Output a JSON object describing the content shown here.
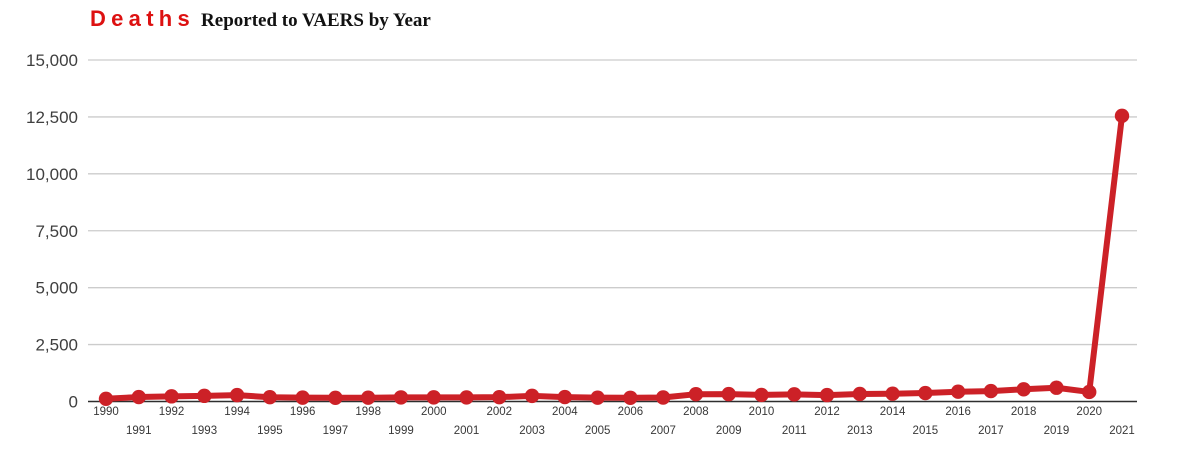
{
  "header": {
    "title_emphasis": "Deaths",
    "title_rest": "Reported to VAERS by Year"
  },
  "chart_data": {
    "type": "line",
    "title": "Deaths Reported to VAERS by Year",
    "title_emphasis": "Deaths",
    "title_rest": "Reported to VAERS by Year",
    "series_name": "Deaths",
    "x": [
      "1990",
      "1991",
      "1992",
      "1993",
      "1994",
      "1995",
      "1996",
      "1997",
      "1998",
      "1999",
      "2000",
      "2001",
      "2002",
      "2003",
      "2004",
      "2005",
      "2006",
      "2007",
      "2008",
      "2009",
      "2010",
      "2011",
      "2012",
      "2013",
      "2014",
      "2015",
      "2016",
      "2017",
      "2018",
      "2019",
      "2020",
      "2021"
    ],
    "values": [
      119,
      195,
      226,
      248,
      280,
      189,
      170,
      162,
      167,
      180,
      181,
      179,
      190,
      247,
      194,
      168,
      164,
      176,
      321,
      325,
      289,
      314,
      281,
      331,
      342,
      371,
      430,
      457,
      536,
      605,
      420,
      12548
    ],
    "ylim": [
      0,
      15000
    ],
    "yticks": [
      0,
      2500,
      5000,
      7500,
      10000,
      12500,
      15000
    ],
    "ytick_labels": [
      "0",
      "2,500",
      "5,000",
      "7,500",
      "10,000",
      "12,500",
      "15,000"
    ],
    "xlabel": "",
    "ylabel": "",
    "grid": "horizontal",
    "legend": "none",
    "colors": {
      "line": "#cc2127",
      "point": "#cc2127",
      "grid": "#cccccc",
      "axis": "#2e2e2e",
      "y_tick_text": "#3f3f3f",
      "x_tick_text": "#383838",
      "title_red": "#dd1111",
      "title_black": "#111111",
      "background": "#ffffff"
    }
  }
}
